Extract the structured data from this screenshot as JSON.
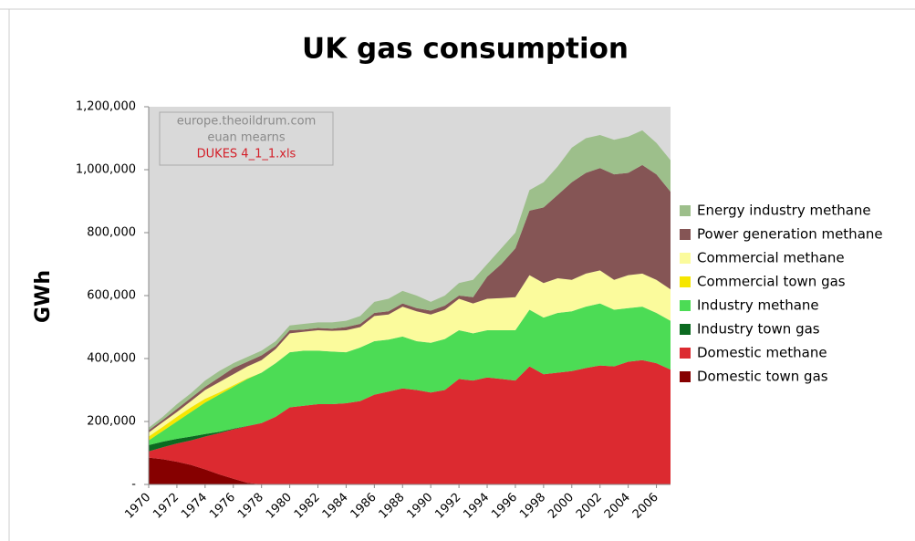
{
  "chart_data": {
    "type": "stacked_area",
    "title": "UK gas consumption",
    "y_label": "GWh",
    "annotations": [
      "europe.theoildrum.com",
      "euan mearns",
      "DUKES 4_1_1.xls"
    ],
    "x": [
      1970,
      1971,
      1972,
      1973,
      1974,
      1975,
      1976,
      1977,
      1978,
      1979,
      1980,
      1981,
      1982,
      1983,
      1984,
      1985,
      1986,
      1987,
      1988,
      1989,
      1990,
      1991,
      1992,
      1993,
      1994,
      1995,
      1996,
      1997,
      1998,
      1999,
      2000,
      2001,
      2002,
      2003,
      2004,
      2005,
      2006,
      2007
    ],
    "xlim": [
      1970,
      2007
    ],
    "xticks": [
      1970,
      1972,
      1974,
      1976,
      1978,
      1980,
      1982,
      1984,
      1986,
      1988,
      1990,
      1992,
      1994,
      1996,
      1998,
      2000,
      2002,
      2004,
      2006
    ],
    "ylim": [
      0,
      1200000
    ],
    "yticks": [
      {
        "value": 0,
        "label": "-"
      },
      {
        "value": 200000,
        "label": "200,000"
      },
      {
        "value": 400000,
        "label": "400,000"
      },
      {
        "value": 600000,
        "label": "600,000"
      },
      {
        "value": 800000,
        "label": "800,000"
      },
      {
        "value": 1000000,
        "label": "1,000,000"
      },
      {
        "value": 1200000,
        "label": "1,200,000"
      }
    ],
    "grid": false,
    "legend": "right",
    "series": [
      {
        "name": "Domestic town gas",
        "color": "#860000",
        "values": [
          85000,
          80000,
          72000,
          62000,
          48000,
          32000,
          18000,
          5000,
          0,
          0,
          0,
          0,
          0,
          0,
          0,
          0,
          0,
          0,
          0,
          0,
          0,
          0,
          0,
          0,
          0,
          0,
          0,
          0,
          0,
          0,
          0,
          0,
          0,
          0,
          0,
          0,
          0,
          0
        ]
      },
      {
        "name": "Domestic methane",
        "color": "#dc2a30",
        "values": [
          20000,
          38000,
          58000,
          78000,
          104000,
          131000,
          157000,
          180000,
          195000,
          215000,
          245000,
          250000,
          255000,
          255000,
          258000,
          265000,
          285000,
          295000,
          305000,
          300000,
          292000,
          300000,
          335000,
          330000,
          340000,
          335000,
          330000,
          375000,
          350000,
          355000,
          360000,
          370000,
          378000,
          375000,
          390000,
          395000,
          385000,
          365000
        ]
      },
      {
        "name": "Industry town gas",
        "color": "#0b6a20",
        "values": [
          20000,
          18000,
          15000,
          12000,
          8000,
          4000,
          2000,
          1000,
          0,
          0,
          0,
          0,
          0,
          0,
          0,
          0,
          0,
          0,
          0,
          0,
          0,
          0,
          0,
          0,
          0,
          0,
          0,
          0,
          0,
          0,
          0,
          0,
          0,
          0,
          0,
          0,
          0,
          0
        ]
      },
      {
        "name": "Industry methane",
        "color": "#4cdc55",
        "values": [
          15000,
          34000,
          55000,
          78000,
          100000,
          118000,
          133000,
          149000,
          160000,
          170000,
          175000,
          175000,
          170000,
          167000,
          162000,
          170000,
          170000,
          165000,
          165000,
          155000,
          158000,
          162000,
          155000,
          150000,
          150000,
          155000,
          160000,
          180000,
          180000,
          190000,
          190000,
          195000,
          197000,
          180000,
          170000,
          170000,
          160000,
          155000
        ]
      },
      {
        "name": "Commercial town gas",
        "color": "#f6e600",
        "values": [
          12000,
          13000,
          15000,
          15000,
          12000,
          7000,
          5000,
          2000,
          0,
          0,
          0,
          0,
          0,
          0,
          0,
          0,
          0,
          0,
          0,
          0,
          0,
          0,
          0,
          0,
          0,
          0,
          0,
          0,
          0,
          0,
          0,
          0,
          0,
          0,
          0,
          0,
          0,
          0
        ]
      },
      {
        "name": "Commercial methane",
        "color": "#fbfb9c",
        "values": [
          13000,
          15000,
          15000,
          20000,
          28000,
          33000,
          35000,
          38000,
          40000,
          45000,
          60000,
          60000,
          65000,
          66000,
          70000,
          65000,
          80000,
          80000,
          95000,
          95000,
          90000,
          93000,
          100000,
          95000,
          100000,
          102000,
          105000,
          110000,
          110000,
          110000,
          100000,
          105000,
          105000,
          95000,
          105000,
          105000,
          105000,
          100000
        ]
      },
      {
        "name": "Power generation methane",
        "color": "#855555",
        "values": [
          7000,
          7000,
          10000,
          10000,
          10000,
          15000,
          20000,
          15000,
          15000,
          10000,
          10000,
          7000,
          7000,
          7000,
          10000,
          10000,
          10000,
          10000,
          10000,
          10000,
          12000,
          13000,
          10000,
          20000,
          70000,
          108000,
          155000,
          205000,
          240000,
          265000,
          310000,
          320000,
          325000,
          335000,
          325000,
          345000,
          335000,
          310000
        ]
      },
      {
        "name": "Energy industry methane",
        "color": "#9dbf8b",
        "values": [
          8000,
          10000,
          15000,
          15000,
          20000,
          20000,
          15000,
          15000,
          15000,
          15000,
          15000,
          18000,
          18000,
          20000,
          20000,
          25000,
          35000,
          40000,
          40000,
          40000,
          28000,
          32000,
          40000,
          55000,
          40000,
          50000,
          50000,
          65000,
          80000,
          90000,
          110000,
          110000,
          105000,
          110000,
          115000,
          110000,
          100000,
          100000
        ]
      }
    ]
  }
}
